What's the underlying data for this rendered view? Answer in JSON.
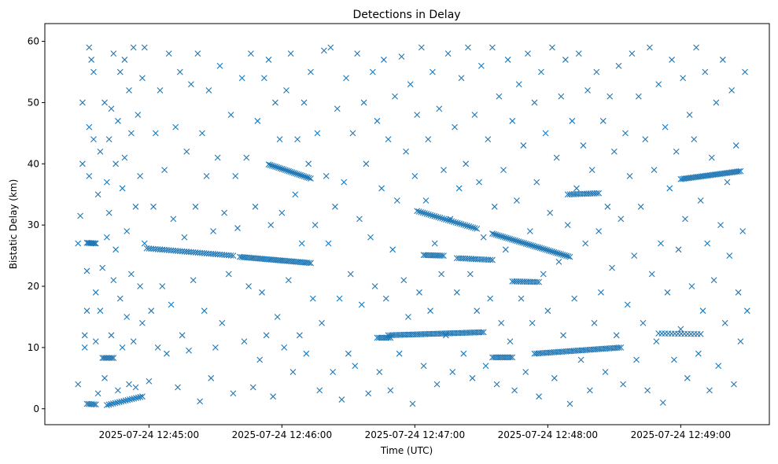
{
  "chart_data": {
    "type": "scatter",
    "title": "Detections in Delay",
    "xlabel": "Time (UTC)",
    "ylabel": "Bistatic Delay (km)",
    "x_units": "seconds after 2025-07-24 12:44:00",
    "xlim": [
      13,
      340
    ],
    "ylim": [
      -2.6,
      62.9
    ],
    "grid": false,
    "marker": "x",
    "color": "#1f77b4",
    "xticks": [
      {
        "value": 60,
        "label": "2025-07-24 12:45:00"
      },
      {
        "value": 120,
        "label": "2025-07-24 12:46:00"
      },
      {
        "value": 180,
        "label": "2025-07-24 12:47:00"
      },
      {
        "value": 240,
        "label": "2025-07-24 12:48:00"
      },
      {
        "value": 300,
        "label": "2025-07-24 12:49:00"
      }
    ],
    "yticks": [
      {
        "value": 0,
        "label": "0"
      },
      {
        "value": 10,
        "label": "10"
      },
      {
        "value": 20,
        "label": "20"
      },
      {
        "value": 30,
        "label": "30"
      },
      {
        "value": 40,
        "label": "40"
      },
      {
        "value": 50,
        "label": "50"
      },
      {
        "value": 60,
        "label": "60"
      }
    ],
    "tracks": [
      {
        "from": [
          32,
          27.1
        ],
        "to": [
          36,
          27.0
        ],
        "n": 8
      },
      {
        "from": [
          32,
          0.8
        ],
        "to": [
          36,
          0.7
        ],
        "n": 6
      },
      {
        "from": [
          39,
          8.3
        ],
        "to": [
          44,
          8.3
        ],
        "n": 8
      },
      {
        "from": [
          41,
          0.6
        ],
        "to": [
          57,
          2.0
        ],
        "n": 18
      },
      {
        "from": [
          59,
          26.2
        ],
        "to": [
          98,
          25.0
        ],
        "n": 40
      },
      {
        "from": [
          101,
          24.8
        ],
        "to": [
          133,
          23.8
        ],
        "n": 40
      },
      {
        "from": [
          114,
          39.9
        ],
        "to": [
          133,
          37.6
        ],
        "n": 26
      },
      {
        "from": [
          163,
          11.6
        ],
        "to": [
          169,
          11.6
        ],
        "n": 8
      },
      {
        "from": [
          168,
          12.0
        ],
        "to": [
          211,
          12.5
        ],
        "n": 50
      },
      {
        "from": [
          181,
          32.3
        ],
        "to": [
          208,
          29.4
        ],
        "n": 32
      },
      {
        "from": [
          184,
          25.1
        ],
        "to": [
          193,
          25.0
        ],
        "n": 12
      },
      {
        "from": [
          199,
          24.6
        ],
        "to": [
          215,
          24.3
        ],
        "n": 18
      },
      {
        "from": [
          215,
          28.6
        ],
        "to": [
          250,
          24.8
        ],
        "n": 45
      },
      {
        "from": [
          215,
          8.4
        ],
        "to": [
          224,
          8.4
        ],
        "n": 12
      },
      {
        "from": [
          224,
          20.8
        ],
        "to": [
          236,
          20.7
        ],
        "n": 14
      },
      {
        "from": [
          234,
          9.0
        ],
        "to": [
          273,
          10.0
        ],
        "n": 45
      },
      {
        "from": [
          249,
          35.0
        ],
        "to": [
          263,
          35.2
        ],
        "n": 16
      },
      {
        "from": [
          300,
          37.5
        ],
        "to": [
          327,
          38.8
        ],
        "n": 36
      },
      {
        "from": [
          290,
          12.3
        ],
        "to": [
          309,
          12.2
        ],
        "n": 14
      }
    ],
    "points": [
      [
        28,
        4
      ],
      [
        29,
        31.5
      ],
      [
        28,
        27
      ],
      [
        30,
        40
      ],
      [
        30,
        50
      ],
      [
        31,
        12
      ],
      [
        31,
        10
      ],
      [
        32,
        16
      ],
      [
        32,
        22.5
      ],
      [
        33,
        46
      ],
      [
        33,
        38
      ],
      [
        33,
        59
      ],
      [
        34,
        57
      ],
      [
        35,
        44
      ],
      [
        35,
        55
      ],
      [
        36,
        19
      ],
      [
        36,
        11
      ],
      [
        37,
        2.5
      ],
      [
        37,
        35
      ],
      [
        38,
        16
      ],
      [
        38,
        42
      ],
      [
        39,
        23
      ],
      [
        40,
        50
      ],
      [
        40,
        5
      ],
      [
        41,
        28
      ],
      [
        41,
        37
      ],
      [
        42,
        44
      ],
      [
        42,
        32
      ],
      [
        43,
        49
      ],
      [
        43,
        12
      ],
      [
        44,
        58
      ],
      [
        44,
        21
      ],
      [
        45,
        40
      ],
      [
        45,
        26
      ],
      [
        46,
        3
      ],
      [
        46,
        47
      ],
      [
        47,
        18
      ],
      [
        47,
        55
      ],
      [
        48,
        36
      ],
      [
        48,
        10
      ],
      [
        49,
        41
      ],
      [
        49,
        57
      ],
      [
        50,
        15
      ],
      [
        50,
        29
      ],
      [
        51,
        4
      ],
      [
        51,
        52
      ],
      [
        52,
        22
      ],
      [
        52,
        45
      ],
      [
        53,
        11
      ],
      [
        53,
        59
      ],
      [
        54,
        33
      ],
      [
        54,
        3.5
      ],
      [
        55,
        48
      ],
      [
        56,
        20
      ],
      [
        56,
        38
      ],
      [
        57,
        14
      ],
      [
        57,
        54
      ],
      [
        58,
        27
      ],
      [
        58,
        59
      ],
      [
        60,
        4.5
      ],
      [
        61,
        16
      ],
      [
        62,
        33
      ],
      [
        63,
        45
      ],
      [
        64,
        10
      ],
      [
        65,
        52
      ],
      [
        66,
        20
      ],
      [
        67,
        39
      ],
      [
        68,
        9
      ],
      [
        69,
        58
      ],
      [
        70,
        17
      ],
      [
        71,
        31
      ],
      [
        72,
        46
      ],
      [
        73,
        3.5
      ],
      [
        74,
        55
      ],
      [
        75,
        12
      ],
      [
        76,
        28
      ],
      [
        77,
        42
      ],
      [
        78,
        9.5
      ],
      [
        79,
        53
      ],
      [
        80,
        21
      ],
      [
        81,
        33
      ],
      [
        82,
        58
      ],
      [
        83,
        1.2
      ],
      [
        84,
        45
      ],
      [
        85,
        16
      ],
      [
        86,
        38
      ],
      [
        87,
        52
      ],
      [
        88,
        5
      ],
      [
        89,
        29
      ],
      [
        90,
        10
      ],
      [
        91,
        41
      ],
      [
        92,
        56
      ],
      [
        93,
        14
      ],
      [
        94,
        32
      ],
      [
        96,
        22
      ],
      [
        97,
        48
      ],
      [
        98,
        2.5
      ],
      [
        99,
        38
      ],
      [
        100,
        29.5
      ],
      [
        102,
        54
      ],
      [
        103,
        11
      ],
      [
        104,
        41
      ],
      [
        105,
        20
      ],
      [
        106,
        58
      ],
      [
        107,
        3.5
      ],
      [
        108,
        33
      ],
      [
        109,
        47
      ],
      [
        110,
        8
      ],
      [
        111,
        19
      ],
      [
        112,
        54
      ],
      [
        113,
        12
      ],
      [
        114,
        57
      ],
      [
        115,
        30
      ],
      [
        116,
        2
      ],
      [
        117,
        50
      ],
      [
        118,
        15
      ],
      [
        119,
        44
      ],
      [
        120,
        32
      ],
      [
        121,
        10
      ],
      [
        122,
        52
      ],
      [
        123,
        21
      ],
      [
        124,
        58
      ],
      [
        125,
        6
      ],
      [
        126,
        35
      ],
      [
        127,
        44
      ],
      [
        128,
        12
      ],
      [
        129,
        27
      ],
      [
        130,
        50
      ],
      [
        131,
        9
      ],
      [
        132,
        40
      ],
      [
        133,
        55
      ],
      [
        134,
        18
      ],
      [
        135,
        30
      ],
      [
        136,
        45
      ],
      [
        137,
        3
      ],
      [
        138,
        14
      ],
      [
        139,
        58.5
      ],
      [
        140,
        38
      ],
      [
        141,
        27
      ],
      [
        142,
        59
      ],
      [
        143,
        6
      ],
      [
        144,
        33
      ],
      [
        145,
        49
      ],
      [
        146,
        18
      ],
      [
        147,
        1.5
      ],
      [
        148,
        37
      ],
      [
        149,
        54
      ],
      [
        150,
        9
      ],
      [
        151,
        22
      ],
      [
        152,
        45
      ],
      [
        153,
        7
      ],
      [
        154,
        58
      ],
      [
        155,
        31
      ],
      [
        156,
        17
      ],
      [
        157,
        50
      ],
      [
        158,
        40
      ],
      [
        159,
        2.5
      ],
      [
        160,
        28
      ],
      [
        161,
        55
      ],
      [
        162,
        20
      ],
      [
        163,
        47
      ],
      [
        164,
        6
      ],
      [
        165,
        36
      ],
      [
        166,
        57
      ],
      [
        167,
        18
      ],
      [
        168,
        44
      ],
      [
        169,
        3
      ],
      [
        170,
        26
      ],
      [
        171,
        51
      ],
      [
        172,
        34
      ],
      [
        173,
        9
      ],
      [
        174,
        57.5
      ],
      [
        175,
        21
      ],
      [
        176,
        42
      ],
      [
        177,
        15
      ],
      [
        178,
        53
      ],
      [
        179,
        0.8
      ],
      [
        180,
        38
      ],
      [
        181,
        48
      ],
      [
        182,
        19
      ],
      [
        183,
        59
      ],
      [
        184,
        7
      ],
      [
        185,
        34
      ],
      [
        186,
        44
      ],
      [
        187,
        16
      ],
      [
        188,
        55
      ],
      [
        189,
        27
      ],
      [
        190,
        4
      ],
      [
        191,
        49
      ],
      [
        192,
        22
      ],
      [
        193,
        39
      ],
      [
        194,
        12
      ],
      [
        195,
        58
      ],
      [
        196,
        31
      ],
      [
        197,
        6
      ],
      [
        198,
        46
      ],
      [
        199,
        19
      ],
      [
        200,
        36
      ],
      [
        201,
        54
      ],
      [
        202,
        9
      ],
      [
        203,
        40
      ],
      [
        204,
        59
      ],
      [
        205,
        22
      ],
      [
        206,
        5
      ],
      [
        207,
        48
      ],
      [
        208,
        16
      ],
      [
        209,
        37
      ],
      [
        210,
        56
      ],
      [
        211,
        28
      ],
      [
        212,
        7
      ],
      [
        213,
        44
      ],
      [
        214,
        18
      ],
      [
        215,
        59
      ],
      [
        216,
        33
      ],
      [
        217,
        4
      ],
      [
        218,
        51
      ],
      [
        219,
        14
      ],
      [
        220,
        39
      ],
      [
        221,
        26
      ],
      [
        222,
        57
      ],
      [
        223,
        11
      ],
      [
        224,
        47
      ],
      [
        225,
        3
      ],
      [
        226,
        34
      ],
      [
        227,
        53
      ],
      [
        228,
        18
      ],
      [
        229,
        43
      ],
      [
        230,
        6
      ],
      [
        231,
        58
      ],
      [
        232,
        29
      ],
      [
        233,
        14
      ],
      [
        234,
        50
      ],
      [
        235,
        37
      ],
      [
        236,
        2
      ],
      [
        237,
        55
      ],
      [
        238,
        22
      ],
      [
        239,
        45
      ],
      [
        240,
        16
      ],
      [
        241,
        32
      ],
      [
        242,
        59
      ],
      [
        243,
        5
      ],
      [
        244,
        41
      ],
      [
        245,
        24
      ],
      [
        246,
        51
      ],
      [
        247,
        12
      ],
      [
        248,
        57
      ],
      [
        249,
        30
      ],
      [
        250,
        0.8
      ],
      [
        251,
        47
      ],
      [
        252,
        18
      ],
      [
        253,
        36
      ],
      [
        254,
        58
      ],
      [
        255,
        8
      ],
      [
        256,
        43
      ],
      [
        257,
        27
      ],
      [
        258,
        52
      ],
      [
        259,
        3
      ],
      [
        260,
        39
      ],
      [
        261,
        14
      ],
      [
        262,
        55
      ],
      [
        263,
        29
      ],
      [
        264,
        19
      ],
      [
        265,
        47
      ],
      [
        266,
        6
      ],
      [
        267,
        33
      ],
      [
        268,
        51
      ],
      [
        269,
        23
      ],
      [
        270,
        42
      ],
      [
        271,
        12
      ],
      [
        272,
        56
      ],
      [
        273,
        31
      ],
      [
        274,
        4
      ],
      [
        275,
        45
      ],
      [
        276,
        17
      ],
      [
        277,
        38
      ],
      [
        278,
        58
      ],
      [
        279,
        25
      ],
      [
        280,
        8
      ],
      [
        281,
        51
      ],
      [
        282,
        33
      ],
      [
        283,
        14
      ],
      [
        284,
        44
      ],
      [
        285,
        3
      ],
      [
        286,
        59
      ],
      [
        287,
        22
      ],
      [
        288,
        39
      ],
      [
        289,
        11
      ],
      [
        290,
        53
      ],
      [
        291,
        27
      ],
      [
        292,
        1
      ],
      [
        293,
        46
      ],
      [
        294,
        19
      ],
      [
        295,
        36
      ],
      [
        296,
        57
      ],
      [
        297,
        8
      ],
      [
        298,
        42
      ],
      [
        299,
        26
      ],
      [
        300,
        13
      ],
      [
        301,
        54
      ],
      [
        302,
        31
      ],
      [
        303,
        5
      ],
      [
        304,
        48
      ],
      [
        305,
        20
      ],
      [
        306,
        44
      ],
      [
        307,
        59
      ],
      [
        308,
        9
      ],
      [
        309,
        34
      ],
      [
        310,
        16
      ],
      [
        311,
        55
      ],
      [
        312,
        27
      ],
      [
        313,
        3
      ],
      [
        314,
        41
      ],
      [
        315,
        21
      ],
      [
        316,
        50
      ],
      [
        317,
        7
      ],
      [
        318,
        30
      ],
      [
        319,
        57
      ],
      [
        320,
        14
      ],
      [
        321,
        37
      ],
      [
        322,
        25
      ],
      [
        323,
        52
      ],
      [
        324,
        4
      ],
      [
        325,
        43
      ],
      [
        326,
        19
      ],
      [
        327,
        11
      ],
      [
        328,
        29
      ],
      [
        329,
        55
      ],
      [
        330,
        16
      ]
    ]
  }
}
